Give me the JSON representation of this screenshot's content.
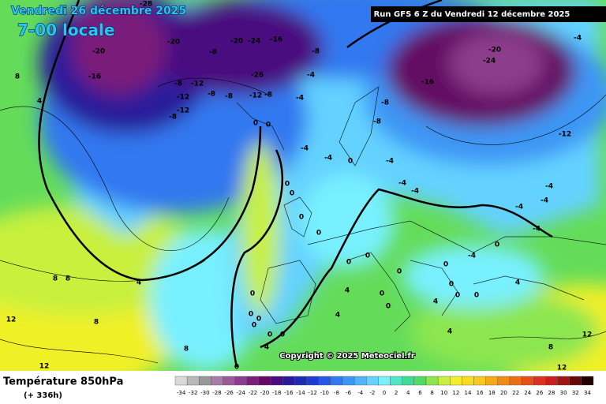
{
  "header": {
    "date": "Vendredi 26 décembre 2025",
    "time": "7-00 locale",
    "run": "Run GFS 6 Z du Vendredi 12 décembre 2025"
  },
  "footer": {
    "title": "Température 850hPa",
    "lead": "(+ 336h)",
    "copyright": "Copyright © 2025 Meteociel.fr"
  },
  "colorbar": {
    "ticks": [
      -34,
      -32,
      -30,
      -28,
      -26,
      -24,
      -22,
      -20,
      -18,
      -16,
      -14,
      -12,
      -10,
      -8,
      -6,
      -4,
      -2,
      0,
      2,
      4,
      6,
      8,
      10,
      12,
      14,
      16,
      18,
      20,
      22,
      24,
      26,
      28,
      30,
      32,
      34
    ],
    "colors": [
      "#d8d8d8",
      "#b8b8b8",
      "#989898",
      "#a87ca8",
      "#9a5a9a",
      "#8c3c8c",
      "#7a1e7a",
      "#640a64",
      "#4a0a80",
      "#2a1a9a",
      "#1e2ab4",
      "#1e3cd2",
      "#2856e6",
      "#3278f0",
      "#3c96f5",
      "#50b4fa",
      "#64d2ff",
      "#78f0ff",
      "#50e6c8",
      "#3cdc96",
      "#50dc64",
      "#8ce650",
      "#c8f03c",
      "#f0f028",
      "#fadc1e",
      "#fac81e",
      "#f5aa14",
      "#f08c14",
      "#eb6e14",
      "#e65014",
      "#dc321e",
      "#c81e1e",
      "#a01414",
      "#640a0a",
      "#1e0000"
    ]
  },
  "contour_labels": [
    -28,
    -20,
    -16,
    -20,
    -8,
    -20,
    -24,
    -16,
    -8,
    -26,
    -8,
    -12,
    -12,
    -8,
    -8,
    -12,
    -8,
    -4,
    -4,
    -12,
    -8,
    8,
    4,
    -8,
    -8,
    -16,
    -20,
    -24,
    -4,
    -12,
    0,
    0,
    -4,
    -4,
    0,
    -4,
    -4,
    -4,
    -4,
    -4,
    -4,
    -4,
    0,
    0,
    0,
    0,
    -4,
    0,
    0,
    0,
    0,
    0,
    0,
    0,
    0,
    4,
    4,
    4,
    4,
    0,
    0,
    0,
    0,
    0,
    0,
    4,
    0,
    4,
    8,
    8,
    8,
    12,
    12,
    8,
    4,
    12,
    12,
    8,
    0,
    0
  ]
}
